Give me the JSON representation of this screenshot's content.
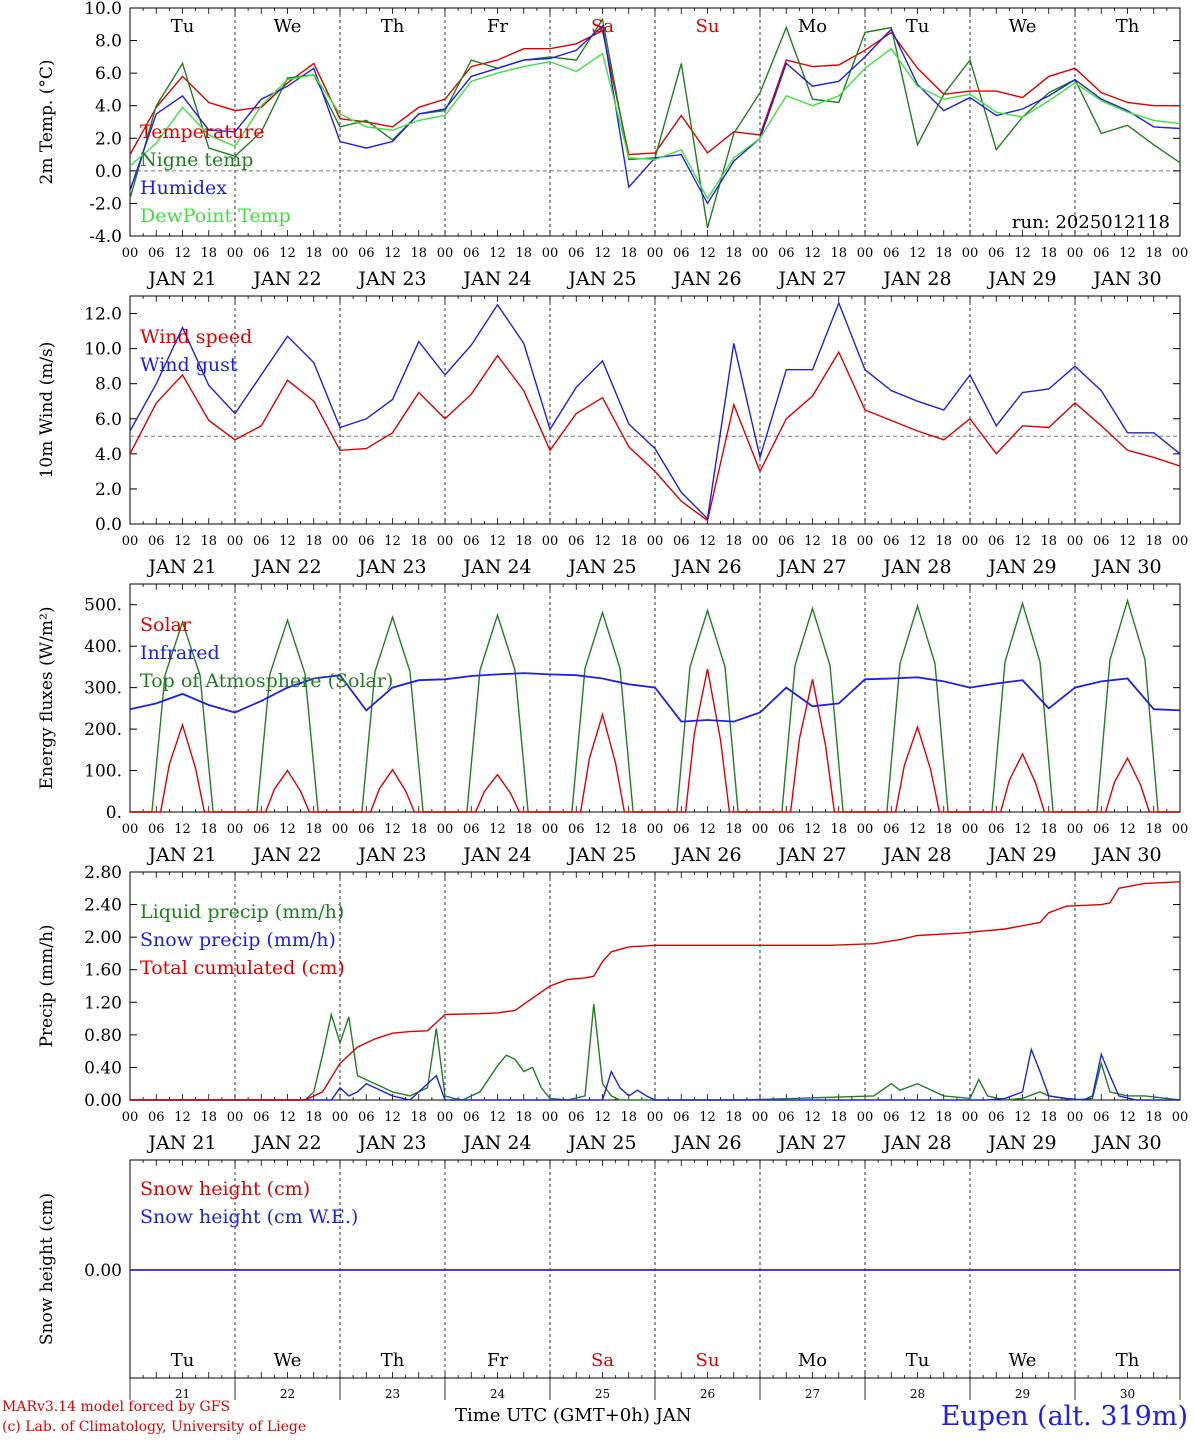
{
  "chart_data": [
    {
      "type": "line",
      "ylabel": "2m Temp. (°C)",
      "ylim": [
        -4,
        10
      ],
      "yticks": [
        "-4.0",
        "-2.0",
        "0.0",
        "2.0",
        "4.0",
        "6.0",
        "8.0",
        "10.0"
      ],
      "reference_line": 0,
      "legend_placement": "left",
      "annotation": "run: 2025012118",
      "days_of_week": [
        "Tu",
        "We",
        "Th",
        "Fr",
        "Sa",
        "Su",
        "Mo",
        "Tu",
        "We",
        "Th"
      ],
      "weekend_color": "#e00000",
      "x_hours_utc": [
        0,
        6,
        12,
        18,
        24,
        30,
        36,
        42,
        48,
        54,
        60,
        66,
        72,
        78,
        84,
        90,
        96,
        102,
        108,
        114,
        120,
        126,
        132,
        138,
        144,
        150,
        156,
        162,
        168,
        174,
        180,
        186,
        192,
        198,
        204,
        210,
        216,
        222,
        228,
        234,
        240
      ],
      "series": [
        {
          "name": "Temperature",
          "color": "#e00000",
          "values": [
            1.0,
            3.9,
            5.8,
            4.2,
            3.7,
            3.9,
            5.4,
            6.6,
            3.2,
            3.0,
            2.7,
            3.9,
            4.4,
            6.4,
            6.8,
            7.5,
            7.5,
            7.8,
            8.6,
            1.0,
            1.1,
            3.4,
            1.1,
            2.4,
            2.2,
            6.8,
            6.4,
            6.5,
            7.4,
            8.5,
            6.3,
            4.7,
            4.9,
            4.9,
            4.5,
            5.8,
            6.3,
            4.8,
            4.2,
            4.0,
            4.0
          ]
        },
        {
          "name": "Nigne temp",
          "color": "#208020",
          "values": [
            -1.7,
            4.0,
            6.6,
            1.4,
            0.9,
            2.4,
            5.7,
            5.9,
            2.7,
            3.1,
            1.9,
            3.5,
            3.7,
            6.8,
            6.3,
            6.8,
            7.0,
            6.8,
            9.3,
            0.7,
            0.8,
            6.6,
            -3.5,
            2.3,
            4.8,
            8.8,
            4.4,
            4.2,
            8.5,
            8.8,
            1.6,
            4.7,
            6.8,
            1.3,
            3.3,
            4.8,
            5.6,
            2.3,
            2.8,
            1.6,
            0.5
          ]
        },
        {
          "name": "Humidex",
          "color": "#2020e0",
          "values": [
            -1.2,
            3.5,
            4.6,
            2.5,
            2.4,
            4.4,
            5.2,
            6.3,
            1.8,
            1.4,
            1.8,
            3.5,
            3.8,
            5.8,
            6.3,
            6.8,
            6.9,
            7.4,
            8.9,
            -1.0,
            0.8,
            1.0,
            -2.0,
            0.6,
            2.0,
            6.6,
            5.2,
            5.5,
            7.0,
            8.7,
            5.3,
            3.7,
            4.5,
            3.4,
            3.8,
            4.6,
            5.6,
            4.4,
            3.7,
            2.7,
            2.6
          ]
        },
        {
          "name": "DewPoint Temp",
          "color": "#40e040",
          "values": [
            0.3,
            1.7,
            3.9,
            2.2,
            1.5,
            4.0,
            5.6,
            5.9,
            3.5,
            2.7,
            2.5,
            3.1,
            3.4,
            5.5,
            6.0,
            6.4,
            6.7,
            6.1,
            7.2,
            0.8,
            0.7,
            1.3,
            -1.7,
            0.8,
            2.0,
            4.6,
            4.0,
            4.6,
            6.3,
            7.5,
            5.2,
            4.4,
            4.7,
            3.6,
            3.3,
            4.3,
            5.4,
            4.3,
            3.6,
            3.1,
            2.9
          ]
        }
      ]
    },
    {
      "type": "line",
      "ylabel": "10m Wind (m/s)",
      "ylim": [
        0,
        13
      ],
      "yticks": [
        "0.0",
        "2.0",
        "4.0",
        "6.0",
        "8.0",
        "10.0",
        "12.0"
      ],
      "reference_line": 5,
      "legend_placement": "left",
      "x_hours_utc": [
        0,
        6,
        12,
        18,
        24,
        30,
        36,
        42,
        48,
        54,
        60,
        66,
        72,
        78,
        84,
        90,
        96,
        102,
        108,
        114,
        120,
        126,
        132,
        138,
        144,
        150,
        156,
        162,
        168,
        174,
        180,
        186,
        192,
        198,
        204,
        210,
        216,
        222,
        228,
        234,
        240
      ],
      "series": [
        {
          "name": "Wind speed",
          "color": "#e00000",
          "values": [
            4.0,
            6.9,
            8.5,
            5.9,
            4.8,
            5.6,
            8.2,
            7.0,
            4.2,
            4.3,
            5.2,
            7.5,
            6.0,
            7.4,
            9.6,
            7.6,
            4.2,
            6.3,
            7.2,
            4.4,
            3.0,
            1.3,
            0.2,
            6.8,
            3.0,
            6.0,
            7.3,
            9.8,
            6.5,
            5.9,
            5.3,
            4.8,
            6.0,
            4.0,
            5.6,
            5.5,
            6.9,
            5.6,
            4.2,
            3.8,
            3.3
          ]
        },
        {
          "name": "Wind gust",
          "color": "#2020e0",
          "values": [
            5.3,
            8.0,
            11.2,
            7.9,
            6.3,
            8.5,
            10.7,
            9.2,
            5.5,
            6.0,
            7.1,
            10.4,
            8.5,
            10.2,
            12.5,
            10.3,
            5.4,
            7.8,
            9.3,
            5.7,
            4.3,
            1.8,
            0.3,
            10.3,
            3.8,
            8.8,
            8.8,
            12.6,
            8.8,
            7.6,
            7.0,
            6.5,
            8.5,
            5.6,
            7.5,
            7.7,
            9.0,
            7.6,
            5.2,
            5.2,
            4.0
          ]
        }
      ]
    },
    {
      "type": "line",
      "ylabel": "Energy fluxes (W/m²)",
      "ylim": [
        0,
        550
      ],
      "yticks": [
        "0.",
        "100.",
        "200.",
        "300.",
        "400.",
        "500."
      ],
      "legend_placement": "left",
      "daily_peaks": {
        "noon_hours_utc": [
          12,
          36,
          60,
          84,
          108,
          132,
          156,
          180,
          204,
          228
        ],
        "Top of Atmosphere (Solar)": [
          458,
          463,
          470,
          475,
          481,
          486,
          491,
          497,
          503,
          510
        ],
        "Solar": [
          210,
          100,
          102,
          90,
          235,
          345,
          320,
          205,
          140,
          130
        ]
      },
      "series": [
        {
          "name": "Solar",
          "color": "#e00000"
        },
        {
          "name": "Infrared",
          "color": "#2020e0",
          "x": [
            0,
            6,
            12,
            18,
            24,
            30,
            36,
            42,
            48,
            54,
            60,
            66,
            72,
            78,
            84,
            90,
            96,
            102,
            108,
            114,
            120,
            126,
            132,
            138,
            144,
            150,
            156,
            162,
            168,
            174,
            180,
            186,
            192,
            198,
            204,
            210,
            216,
            222,
            228,
            234,
            240
          ],
          "values": [
            248,
            262,
            285,
            258,
            240,
            268,
            300,
            322,
            330,
            245,
            300,
            318,
            320,
            328,
            332,
            335,
            332,
            330,
            322,
            308,
            300,
            218,
            222,
            218,
            240,
            300,
            255,
            262,
            320,
            322,
            325,
            315,
            300,
            310,
            318,
            250,
            300,
            315,
            322,
            248,
            245
          ]
        },
        {
          "name": "Top of Atmosphere (Solar)",
          "color": "#208020"
        }
      ]
    },
    {
      "type": "line",
      "ylabel": "Precip (mm/h)",
      "ylim": [
        0,
        2.8
      ],
      "yticks": [
        "0.00",
        "0.40",
        "0.80",
        "1.20",
        "1.60",
        "2.00",
        "2.40",
        "2.80"
      ],
      "legend_placement": "left",
      "series": [
        {
          "name": "Liquid precip (mm/h)",
          "color": "#208020",
          "x": [
            0,
            40,
            42,
            44,
            46,
            48,
            50,
            52,
            56,
            60,
            64,
            68,
            70,
            72,
            74,
            76,
            80,
            84,
            86,
            88,
            90,
            92,
            94,
            96,
            100,
            104,
            106,
            108,
            110,
            112,
            120,
            140,
            170,
            174,
            176,
            180,
            186,
            192,
            194,
            196,
            200,
            204,
            208,
            210,
            216,
            220,
            222,
            224,
            228,
            232,
            240
          ],
          "values": [
            0,
            0,
            0.1,
            0.55,
            1.05,
            0.7,
            1.02,
            0.3,
            0.2,
            0.1,
            0.05,
            0.15,
            0.88,
            0.05,
            0.02,
            0.0,
            0.1,
            0.42,
            0.55,
            0.5,
            0.35,
            0.4,
            0.15,
            0.02,
            0.0,
            0.05,
            1.18,
            0.2,
            0.05,
            0.0,
            0.0,
            0.0,
            0.05,
            0.2,
            0.12,
            0.2,
            0.05,
            0.02,
            0.25,
            0.05,
            0.0,
            0.02,
            0.1,
            0.05,
            0.0,
            0.02,
            0.45,
            0.1,
            0.05,
            0.05,
            0.0
          ]
        },
        {
          "name": "Snow precip (mm/h)",
          "color": "#2020e0",
          "x": [
            0,
            46,
            48,
            50,
            52,
            54,
            56,
            60,
            64,
            70,
            72,
            108,
            110,
            112,
            114,
            116,
            118,
            120,
            196,
            200,
            204,
            206,
            208,
            210,
            214,
            218,
            220,
            222,
            224,
            226,
            230,
            240
          ],
          "values": [
            0,
            0,
            0.15,
            0.05,
            0.1,
            0.2,
            0.15,
            0.05,
            0.0,
            0.3,
            0.0,
            0.0,
            0.35,
            0.15,
            0.05,
            0.12,
            0.05,
            0.0,
            0.0,
            0.02,
            0.1,
            0.62,
            0.35,
            0.05,
            0.02,
            0.0,
            0.05,
            0.56,
            0.3,
            0.05,
            0.0,
            0.0
          ]
        },
        {
          "name": "Total cumulated (cm)",
          "color": "#e00000",
          "x": [
            0,
            40,
            44,
            48,
            52,
            56,
            60,
            64,
            68,
            70,
            72,
            80,
            84,
            88,
            92,
            96,
            100,
            104,
            106,
            108,
            110,
            114,
            120,
            140,
            160,
            170,
            176,
            180,
            190,
            200,
            208,
            210,
            214,
            222,
            224,
            226,
            232,
            240
          ],
          "values": [
            0,
            0,
            0.1,
            0.45,
            0.65,
            0.75,
            0.82,
            0.84,
            0.85,
            0.95,
            1.05,
            1.06,
            1.07,
            1.1,
            1.25,
            1.4,
            1.48,
            1.5,
            1.52,
            1.7,
            1.82,
            1.88,
            1.9,
            1.9,
            1.9,
            1.92,
            1.97,
            2.02,
            2.05,
            2.1,
            2.18,
            2.3,
            2.38,
            2.4,
            2.42,
            2.6,
            2.66,
            2.68
          ]
        }
      ]
    },
    {
      "type": "line",
      "ylabel": "Snow height (cm)",
      "yticks": [
        "0.00"
      ],
      "legend_placement": "left",
      "series": [
        {
          "name": "Snow height (cm)",
          "color": "#e00000",
          "x": [
            0,
            240
          ],
          "values": [
            0,
            0
          ]
        },
        {
          "name": "Snow height (cm W.E.)",
          "color": "#2020e0",
          "x": [
            0,
            240
          ],
          "values": [
            0,
            0
          ]
        }
      ]
    }
  ],
  "x_axis": {
    "hour_labels": [
      "00",
      "06",
      "12",
      "18"
    ],
    "final_hour_label": "00",
    "date_labels": [
      "JAN 21",
      "JAN 22",
      "JAN 23",
      "JAN 24",
      "JAN 25",
      "JAN 26",
      "JAN 27",
      "JAN 28",
      "JAN 29",
      "JAN 30"
    ],
    "day_numbers": [
      "21",
      "22",
      "23",
      "24",
      "25",
      "26",
      "27",
      "28",
      "29",
      "30"
    ],
    "title": "Time UTC (GMT+0h) JAN"
  },
  "footer": {
    "credit_model": "MARv3.14 model forced by GFS",
    "credit_lab": "(c) Lab. of Climatology, University of Liege",
    "station": "Eupen (alt. 319m)"
  }
}
